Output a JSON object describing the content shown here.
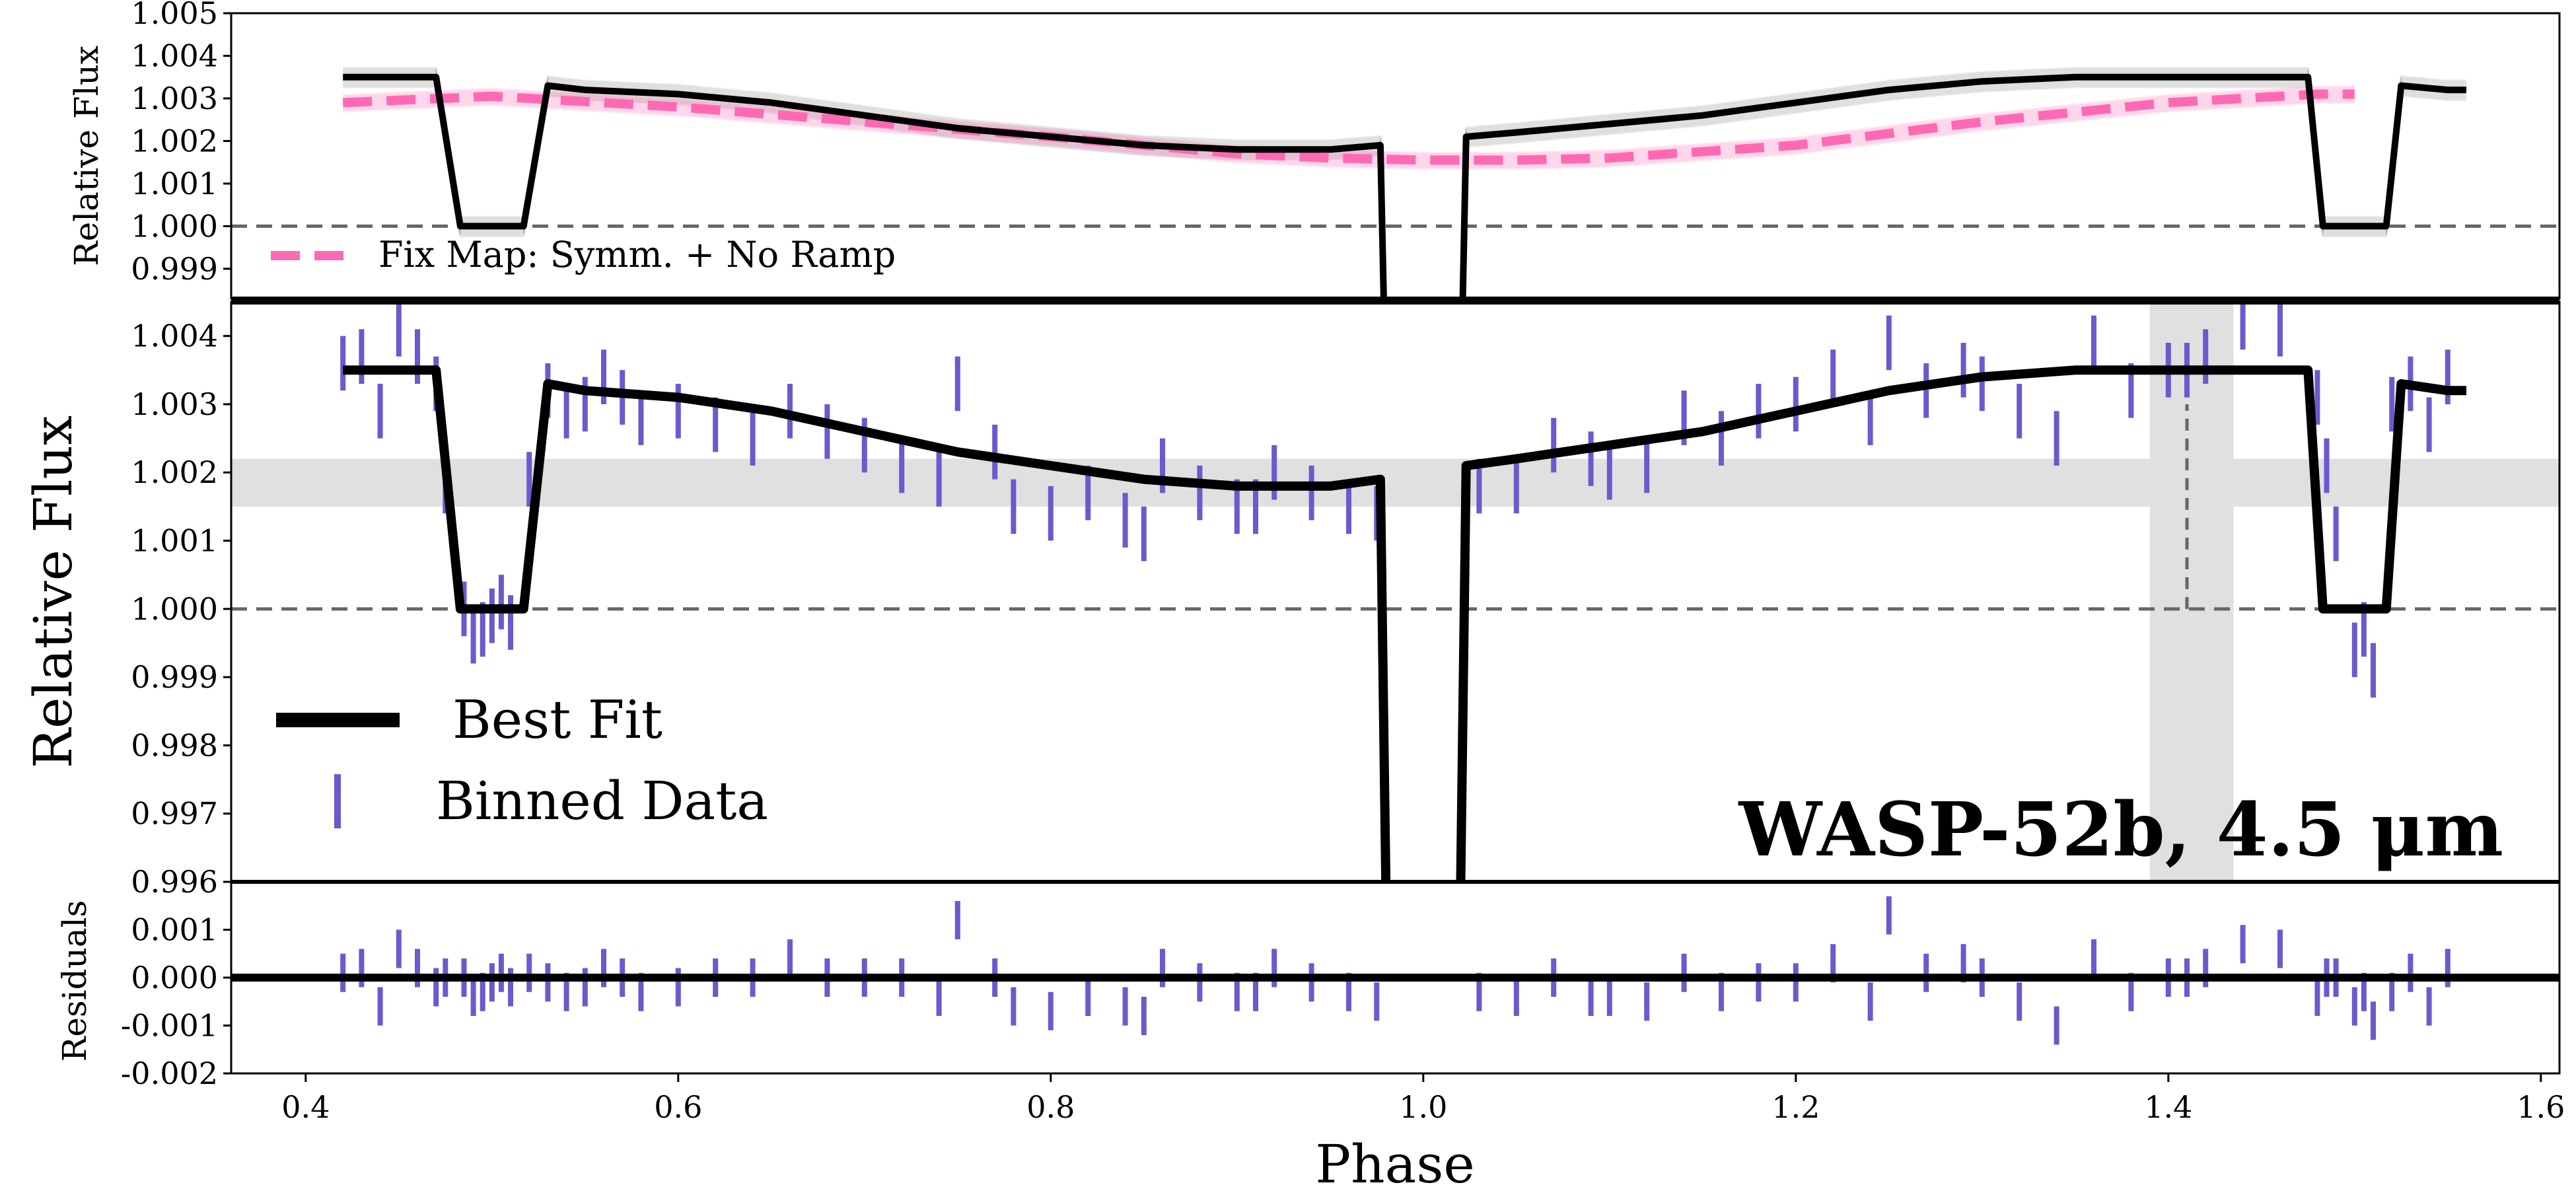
{
  "chart_data": {
    "type": "line",
    "xlabel": "Phase",
    "x_ticks": [
      "0.4",
      "0.6",
      "0.8",
      "1.0",
      "1.2",
      "1.4",
      "1.6"
    ],
    "x_tick_values": [
      0.4,
      0.6,
      0.8,
      1.0,
      1.2,
      1.4,
      1.6
    ],
    "xlim": [
      0.36,
      1.61
    ],
    "annotation": "WASP-52b, 4.5 μm",
    "colors": {
      "best_fit": "#000000",
      "binned_data": "#6a5acd",
      "fixed_map": "#ff69b4",
      "reference": "#666666",
      "band": "#e0e0e0"
    },
    "panels": {
      "top": {
        "ylabel": "Relative Flux",
        "ylim": [
          0.9983,
          1.005
        ],
        "y_ticks": [
          "1.005",
          "1.004",
          "1.003",
          "1.002",
          "1.001",
          "1.000",
          "0.999"
        ],
        "y_tick_values": [
          1.005,
          1.004,
          1.003,
          1.002,
          1.001,
          1.0,
          0.999
        ],
        "reference_line": 1.0,
        "legend": [
          "Fix Map: Symm. + No Ramp"
        ],
        "series": [
          {
            "name": "Fix Map: Symm. + No Ramp",
            "style": "dashed",
            "x": [
              0.42,
              0.5,
              0.6,
              0.7,
              0.8,
              0.9,
              0.95,
              1.0,
              1.05,
              1.1,
              1.2,
              1.3,
              1.4,
              1.48,
              1.5
            ],
            "y": [
              1.0029,
              1.00305,
              1.0028,
              1.00245,
              1.0021,
              1.0017,
              1.0016,
              1.00155,
              1.00155,
              1.0016,
              1.0019,
              1.00245,
              1.0029,
              1.0031,
              1.0031
            ]
          }
        ]
      },
      "middle": {
        "ylabel": "Relative Flux",
        "ylim": [
          0.996,
          1.0045
        ],
        "y_ticks": [
          "1.004",
          "1.003",
          "1.002",
          "1.001",
          "1.000",
          "0.999",
          "0.998",
          "0.997",
          "0.996"
        ],
        "y_tick_values": [
          1.004,
          1.003,
          1.002,
          1.001,
          1.0,
          0.999,
          0.998,
          0.997,
          0.996
        ],
        "reference_line": 1.0,
        "h_band": [
          1.0015,
          1.0022
        ],
        "v_band": [
          1.39,
          1.435
        ],
        "v_dashed_line": {
          "x": 1.41,
          "y_from": 1.0,
          "y_to": 1.003
        },
        "legend": [
          "Best Fit",
          "Binned Data"
        ],
        "best_fit": {
          "name": "Best Fit",
          "x": [
            0.42,
            0.44,
            0.46,
            0.47,
            0.483,
            0.517,
            0.53,
            0.55,
            0.6,
            0.65,
            0.7,
            0.75,
            0.8,
            0.85,
            0.9,
            0.95,
            0.977,
            0.98,
            1.02,
            1.023,
            1.05,
            1.1,
            1.15,
            1.2,
            1.25,
            1.3,
            1.35,
            1.4,
            1.45,
            1.475,
            1.483,
            1.517,
            1.525,
            1.55,
            1.56
          ],
          "y": [
            1.0035,
            1.0035,
            1.0035,
            1.0035,
            1.0,
            1.0,
            1.0033,
            1.0032,
            1.0031,
            1.0029,
            1.0026,
            1.0023,
            1.0021,
            1.0019,
            1.0018,
            1.0018,
            1.0019,
            0.9958,
            0.9958,
            1.0021,
            1.0022,
            1.0024,
            1.0026,
            1.0029,
            1.0032,
            1.0034,
            1.0035,
            1.0035,
            1.0035,
            1.0035,
            1.0,
            1.0,
            1.0033,
            1.0032,
            1.0032
          ]
        },
        "binned_data": {
          "name": "Binned Data",
          "x": [
            0.42,
            0.43,
            0.44,
            0.45,
            0.46,
            0.47,
            0.475,
            0.485,
            0.49,
            0.495,
            0.5,
            0.505,
            0.51,
            0.52,
            0.53,
            0.54,
            0.55,
            0.56,
            0.57,
            0.58,
            0.6,
            0.62,
            0.64,
            0.66,
            0.68,
            0.7,
            0.72,
            0.74,
            0.75,
            0.77,
            0.78,
            0.8,
            0.82,
            0.84,
            0.85,
            0.86,
            0.88,
            0.9,
            0.91,
            0.92,
            0.94,
            0.96,
            0.975,
            1.03,
            1.05,
            1.07,
            1.09,
            1.1,
            1.12,
            1.14,
            1.16,
            1.18,
            1.2,
            1.22,
            1.24,
            1.25,
            1.27,
            1.29,
            1.3,
            1.32,
            1.34,
            1.36,
            1.38,
            1.4,
            1.41,
            1.42,
            1.44,
            1.46,
            1.48,
            1.485,
            1.49,
            1.5,
            1.505,
            1.51,
            1.52,
            1.53,
            1.54,
            1.55
          ],
          "y": [
            1.0036,
            1.0037,
            1.0029,
            1.0041,
            1.0037,
            1.0033,
            1.0018,
            1.0,
            0.9996,
            0.9997,
            0.9999,
            1.0001,
            0.9998,
            1.0019,
            1.0032,
            1.0029,
            1.003,
            1.0034,
            1.0031,
            1.0028,
            1.0029,
            1.0027,
            1.0025,
            1.0029,
            1.0026,
            1.0024,
            1.0021,
            1.0019,
            1.0033,
            1.0023,
            1.0015,
            1.0014,
            1.0017,
            1.0013,
            1.0011,
            1.0021,
            1.0017,
            1.0015,
            1.0015,
            1.002,
            1.0017,
            1.0015,
            1.0014,
            1.0018,
            1.0018,
            1.0024,
            1.0022,
            1.002,
            1.0021,
            1.0028,
            1.0025,
            1.0029,
            1.003,
            1.0034,
            1.0028,
            1.0039,
            1.0032,
            1.0035,
            1.0033,
            1.0029,
            1.0025,
            1.0039,
            1.0032,
            1.0035,
            1.0035,
            1.0037,
            1.0042,
            1.0041,
            1.0031,
            1.0021,
            1.0011,
            0.9994,
            0.9997,
            0.9991,
            1.003,
            1.0033,
            1.0027,
            1.0034
          ]
        }
      },
      "bottom": {
        "ylabel": "Residuals",
        "ylim": [
          -0.002,
          0.002
        ],
        "y_ticks": [
          "0.001",
          "0.000",
          "-0.001",
          "-0.002"
        ],
        "y_tick_values": [
          0.001,
          0.0,
          -0.001,
          -0.002
        ],
        "zero_line": 0.0,
        "residuals": {
          "x": [
            0.42,
            0.43,
            0.44,
            0.45,
            0.46,
            0.47,
            0.475,
            0.485,
            0.49,
            0.495,
            0.5,
            0.505,
            0.51,
            0.52,
            0.53,
            0.54,
            0.55,
            0.56,
            0.57,
            0.58,
            0.6,
            0.62,
            0.64,
            0.66,
            0.68,
            0.7,
            0.72,
            0.74,
            0.75,
            0.77,
            0.78,
            0.8,
            0.82,
            0.84,
            0.85,
            0.86,
            0.88,
            0.9,
            0.91,
            0.92,
            0.94,
            0.96,
            0.975,
            1.03,
            1.05,
            1.07,
            1.09,
            1.1,
            1.12,
            1.14,
            1.16,
            1.18,
            1.2,
            1.22,
            1.24,
            1.25,
            1.27,
            1.29,
            1.3,
            1.32,
            1.34,
            1.36,
            1.38,
            1.4,
            1.41,
            1.42,
            1.44,
            1.46,
            1.48,
            1.485,
            1.49,
            1.5,
            1.505,
            1.51,
            1.52,
            1.53,
            1.54,
            1.55
          ],
          "y": [
            0.0001,
            0.0002,
            -0.0006,
            0.0006,
            0.0002,
            -0.0002,
            0.0,
            0.0,
            -0.0004,
            -0.0003,
            -0.0001,
            0.0001,
            -0.0002,
            0.0001,
            -0.0001,
            -0.0003,
            -0.0002,
            0.0002,
            0.0,
            -0.0003,
            -0.0002,
            0.0,
            0.0,
            0.0004,
            0.0,
            0.0,
            0.0,
            -0.0004,
            0.0012,
            0.0,
            -0.0006,
            -0.0007,
            -0.0004,
            -0.0006,
            -0.0008,
            0.0002,
            -0.0001,
            -0.0003,
            -0.0003,
            0.0002,
            -0.0001,
            -0.0003,
            -0.0005,
            -0.0003,
            -0.0004,
            0.0,
            -0.0004,
            -0.0004,
            -0.0005,
            0.0001,
            -0.0003,
            -0.0001,
            -0.0001,
            0.0003,
            -0.0005,
            0.0013,
            0.0001,
            0.0003,
            0.0,
            -0.0005,
            -0.001,
            0.0004,
            -0.0003,
            0.0,
            0.0,
            0.0002,
            0.0007,
            0.0006,
            -0.0004,
            0.0,
            0.0,
            -0.0006,
            -0.0003,
            -0.0009,
            -0.0003,
            0.0001,
            -0.0006,
            0.0002
          ]
        }
      }
    }
  }
}
